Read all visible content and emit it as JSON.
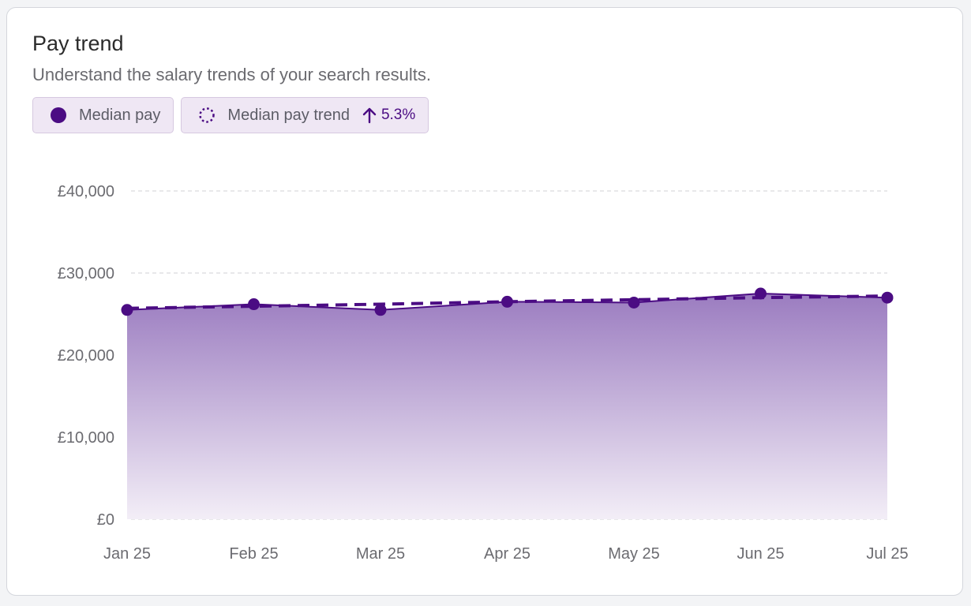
{
  "header": {
    "title": "Pay trend",
    "subtitle": "Understand the salary trends of your search results."
  },
  "legend": {
    "median_label": "Median pay",
    "trend_label": "Median pay trend",
    "trend_value": "5.3%",
    "median_icon": "solid-dot-icon",
    "trend_icon": "dotted-circle-icon",
    "direction_icon": "arrow-up-icon"
  },
  "colors": {
    "accent": "#4b0c83",
    "chip_bg": "#efe7f4",
    "fill_top": "#9b7cc0",
    "fill_bottom": "#f3eef7"
  },
  "chart_data": {
    "type": "area",
    "categories": [
      "Jan 25",
      "Feb 25",
      "Mar 25",
      "Apr 25",
      "May 25",
      "Jun 25",
      "Jul 25"
    ],
    "series": [
      {
        "name": "Median pay",
        "values": [
          25500,
          26200,
          25500,
          26500,
          26400,
          27500,
          27000
        ]
      },
      {
        "name": "Median pay trend",
        "values": [
          25700,
          25950,
          26200,
          26500,
          26750,
          27000,
          27200
        ]
      }
    ],
    "yticks": [
      "£0",
      "£10,000",
      "£20,000",
      "£30,000",
      "£40,000"
    ],
    "ylim": [
      0,
      40000
    ],
    "grid": true
  }
}
